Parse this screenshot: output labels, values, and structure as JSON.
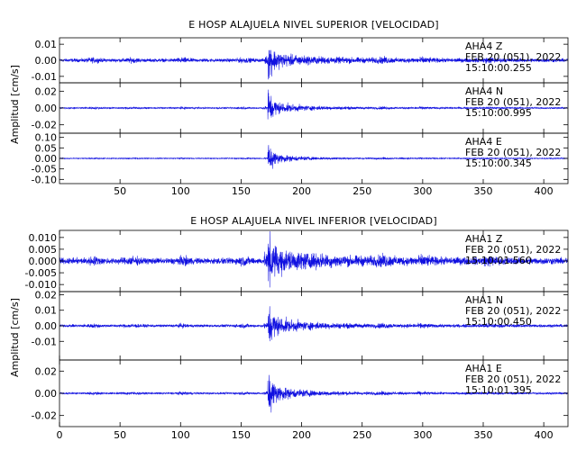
{
  "trace_color": "#1010e0",
  "chart_data": [
    {
      "type": "line",
      "title": "E HOSP ALAJUELA NIVEL SUPERIOR [VELOCIDAD]",
      "ylabel": "Amplitud [cm/s]",
      "xlim": [
        0,
        420
      ],
      "x_ticks": [
        50,
        100,
        150,
        200,
        250,
        300,
        350,
        400
      ],
      "event_x": 172,
      "series": [
        {
          "name": "AHA4 Z",
          "station": "AHA4",
          "component": "Z",
          "date": "FEB 20 (051), 2022",
          "time": "15:10:00.255",
          "ylim": [
            -0.014,
            0.014
          ],
          "y_ticks": [
            0.01,
            0.0,
            -0.01
          ],
          "y_tick_labels": [
            "0.01",
            "0.00",
            "-0.01"
          ],
          "noise_amp": 0.0015,
          "peak_amp": 0.012,
          "coda_amp": 0.0045,
          "late_amp": 0.002
        },
        {
          "name": "AHA4 N",
          "station": "AHA4",
          "component": "N",
          "date": "FEB 20 (051), 2022",
          "time": "15:10:00.995",
          "ylim": [
            -0.03,
            0.03
          ],
          "y_ticks": [
            0.02,
            0.0,
            -0.02
          ],
          "y_tick_labels": [
            "0.02",
            "0.00",
            "-0.02"
          ],
          "noise_amp": 0.0012,
          "peak_amp": 0.026,
          "coda_amp": 0.009,
          "late_amp": 0.0015
        },
        {
          "name": "AHA4 E",
          "station": "AHA4",
          "component": "E",
          "date": "FEB 20 (051), 2022",
          "time": "15:10:00.345",
          "ylim": [
            -0.12,
            0.12
          ],
          "y_ticks": [
            0.1,
            0.05,
            0.0,
            -0.05,
            -0.1
          ],
          "y_tick_labels": [
            "0.10",
            "0.05",
            "0.00",
            "-0.05",
            "-0.10"
          ],
          "noise_amp": 0.003,
          "peak_amp": 0.1,
          "coda_amp": 0.03,
          "late_amp": 0.004
        }
      ]
    },
    {
      "type": "line",
      "title": "E HOSP ALAJUELA NIVEL INFERIOR [VELOCIDAD]",
      "ylabel": "Amplitud [cm/s]",
      "xlim": [
        0,
        420
      ],
      "x_ticks": [
        0,
        50,
        100,
        150,
        200,
        250,
        300,
        350,
        400
      ],
      "event_x": 172,
      "series": [
        {
          "name": "AHA1 Z",
          "station": "AHA1",
          "component": "Z",
          "date": "FEB 20 (051), 2022",
          "time": "15:10:01.560",
          "ylim": [
            -0.013,
            0.013
          ],
          "y_ticks": [
            0.01,
            0.005,
            0.0,
            -0.005,
            -0.01
          ],
          "y_tick_labels": [
            "0.010",
            "0.005",
            "0.000",
            "-0.005",
            "-0.010"
          ],
          "noise_amp": 0.0018,
          "peak_amp": 0.011,
          "coda_amp": 0.0045,
          "late_amp": 0.003
        },
        {
          "name": "AHA1 N",
          "station": "AHA1",
          "component": "N",
          "date": "FEB 20 (051), 2022",
          "time": "15:10:00.450",
          "ylim": [
            -0.022,
            0.022
          ],
          "y_ticks": [
            0.02,
            0.01,
            0.0,
            -0.01
          ],
          "y_tick_labels": [
            "0.02",
            "0.01",
            "0.00",
            "-0.01"
          ],
          "noise_amp": 0.0012,
          "peak_amp": 0.016,
          "coda_amp": 0.007,
          "late_amp": 0.0015
        },
        {
          "name": "AHA1 E",
          "station": "AHA1",
          "component": "E",
          "date": "FEB 20 (051), 2022",
          "time": "15:10:01.395",
          "ylim": [
            -0.03,
            0.03
          ],
          "y_ticks": [
            0.02,
            0.0,
            -0.02
          ],
          "y_tick_labels": [
            "0.02",
            "0.00",
            "-0.02"
          ],
          "noise_amp": 0.0012,
          "peak_amp": 0.026,
          "coda_amp": 0.009,
          "late_amp": 0.0015
        }
      ]
    }
  ]
}
